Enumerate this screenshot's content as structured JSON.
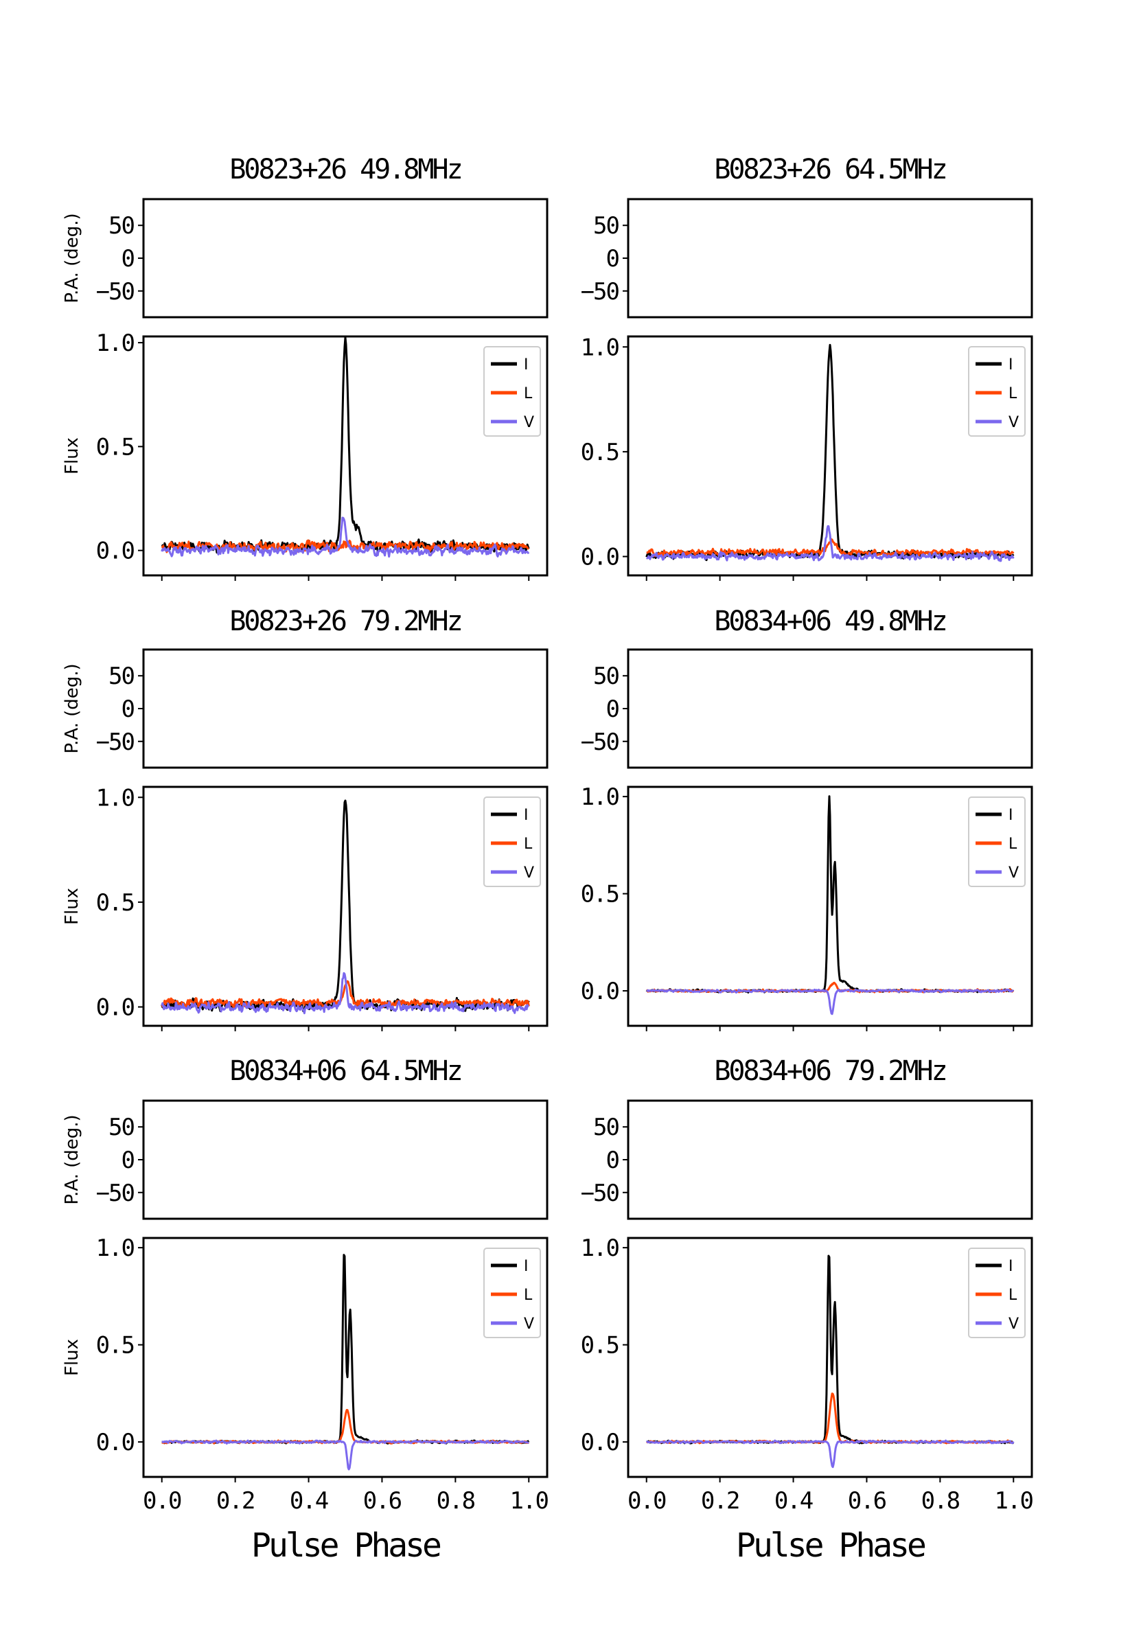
{
  "chart_data": [
    {
      "type": "line",
      "title": "B0823+26 49.8MHz",
      "pa_ylabel": "P.A. (deg.)",
      "pa_yticks": [
        "50",
        "0",
        "−50"
      ],
      "flux_ylabel": "Flux",
      "flux_yticks": [
        "0.0",
        "0.5",
        "1.0"
      ],
      "flux_ylim": [
        -0.12,
        1.03
      ],
      "xlim": [
        -0.05,
        1.05
      ],
      "noise": {
        "I": 0.018,
        "L": 0.016,
        "V": 0.016
      },
      "series": [
        {
          "name": "I",
          "color": "#000000",
          "baseline": 0.02,
          "components": [
            {
              "center": 0.5,
              "amp": 1.0,
              "width": 0.008
            },
            {
              "center": 0.53,
              "amp": 0.1,
              "width": 0.012
            }
          ]
        },
        {
          "name": "L",
          "color": "#ff4500",
          "baseline": 0.02,
          "components": [
            {
              "center": 0.5,
              "amp": 0.02,
              "width": 0.01
            }
          ]
        },
        {
          "name": "V",
          "color": "#7b68ee",
          "baseline": 0.0,
          "components": [
            {
              "center": 0.495,
              "amp": 0.15,
              "width": 0.006
            },
            {
              "center": 0.515,
              "amp": 0.02,
              "width": 0.01
            }
          ]
        }
      ],
      "xlabel": "",
      "xticks": []
    },
    {
      "type": "line",
      "title": "B0823+26 64.5MHz",
      "pa_ylabel": "",
      "pa_yticks": [
        "50",
        "0",
        "−50"
      ],
      "flux_ylabel": "",
      "flux_yticks": [
        "0.0",
        "0.5",
        "1.0"
      ],
      "flux_ylim": [
        -0.09,
        1.05
      ],
      "xlim": [
        -0.05,
        1.05
      ],
      "noise": {
        "I": 0.012,
        "L": 0.01,
        "V": 0.012
      },
      "series": [
        {
          "name": "I",
          "color": "#000000",
          "baseline": 0.01,
          "components": [
            {
              "center": 0.5,
              "amp": 0.99,
              "width": 0.01
            }
          ]
        },
        {
          "name": "L",
          "color": "#ff4500",
          "baseline": 0.02,
          "components": [
            {
              "center": 0.505,
              "amp": 0.06,
              "width": 0.01
            }
          ]
        },
        {
          "name": "V",
          "color": "#7b68ee",
          "baseline": 0.0,
          "components": [
            {
              "center": 0.495,
              "amp": 0.15,
              "width": 0.006
            }
          ]
        }
      ],
      "xlabel": "",
      "xticks": []
    },
    {
      "type": "line",
      "title": "B0823+26 79.2MHz",
      "pa_ylabel": "P.A. (deg.)",
      "pa_yticks": [
        "50",
        "0",
        "−50"
      ],
      "flux_ylabel": "Flux",
      "flux_yticks": [
        "0.0",
        "0.5",
        "1.0"
      ],
      "flux_ylim": [
        -0.09,
        1.05
      ],
      "xlim": [
        -0.05,
        1.05
      ],
      "noise": {
        "I": 0.016,
        "L": 0.014,
        "V": 0.015
      },
      "series": [
        {
          "name": "I",
          "color": "#000000",
          "baseline": 0.01,
          "components": [
            {
              "center": 0.5,
              "amp": 0.99,
              "width": 0.009
            }
          ]
        },
        {
          "name": "L",
          "color": "#ff4500",
          "baseline": 0.02,
          "components": [
            {
              "center": 0.505,
              "amp": 0.1,
              "width": 0.008
            }
          ]
        },
        {
          "name": "V",
          "color": "#7b68ee",
          "baseline": 0.0,
          "components": [
            {
              "center": 0.497,
              "amp": 0.17,
              "width": 0.006
            }
          ]
        }
      ],
      "xlabel": "",
      "xticks": []
    },
    {
      "type": "line",
      "title": "B0834+06 49.8MHz",
      "pa_ylabel": "",
      "pa_yticks": [
        "50",
        "0",
        "−50"
      ],
      "flux_ylabel": "",
      "flux_yticks": [
        "0.0",
        "0.5",
        "1.0"
      ],
      "flux_ylim": [
        -0.18,
        1.05
      ],
      "xlim": [
        -0.05,
        1.05
      ],
      "noise": {
        "I": 0.004,
        "L": 0.004,
        "V": 0.004
      },
      "series": [
        {
          "name": "I",
          "color": "#000000",
          "baseline": 0.0,
          "components": [
            {
              "center": 0.498,
              "amp": 0.98,
              "width": 0.004
            },
            {
              "center": 0.513,
              "amp": 0.63,
              "width": 0.005
            },
            {
              "center": 0.53,
              "amp": 0.05,
              "width": 0.02
            }
          ]
        },
        {
          "name": "L",
          "color": "#ff4500",
          "baseline": 0.0,
          "components": [
            {
              "center": 0.51,
              "amp": 0.04,
              "width": 0.008
            }
          ]
        },
        {
          "name": "V",
          "color": "#7b68ee",
          "baseline": 0.0,
          "components": [
            {
              "center": 0.505,
              "amp": -0.12,
              "width": 0.005
            }
          ]
        }
      ],
      "xlabel": "",
      "xticks": []
    },
    {
      "type": "line",
      "title": "B0834+06 64.5MHz",
      "pa_ylabel": "P.A. (deg.)",
      "pa_yticks": [
        "50",
        "0",
        "−50"
      ],
      "flux_ylabel": "Flux",
      "flux_yticks": [
        "0.0",
        "0.5",
        "1.0"
      ],
      "flux_ylim": [
        -0.18,
        1.05
      ],
      "xlim": [
        -0.05,
        1.05
      ],
      "noise": {
        "I": 0.004,
        "L": 0.004,
        "V": 0.004
      },
      "series": [
        {
          "name": "I",
          "color": "#000000",
          "baseline": 0.0,
          "components": [
            {
              "center": 0.497,
              "amp": 0.97,
              "width": 0.004
            },
            {
              "center": 0.513,
              "amp": 0.66,
              "width": 0.005
            },
            {
              "center": 0.53,
              "amp": 0.03,
              "width": 0.02
            }
          ]
        },
        {
          "name": "L",
          "color": "#ff4500",
          "baseline": 0.0,
          "components": [
            {
              "center": 0.505,
              "amp": 0.16,
              "width": 0.008
            }
          ]
        },
        {
          "name": "V",
          "color": "#7b68ee",
          "baseline": 0.0,
          "components": [
            {
              "center": 0.51,
              "amp": -0.14,
              "width": 0.005
            }
          ]
        }
      ],
      "xlabel": "Pulse Phase",
      "xticks": [
        "0.0",
        "0.2",
        "0.4",
        "0.6",
        "0.8",
        "1.0"
      ]
    },
    {
      "type": "line",
      "title": "B0834+06 79.2MHz",
      "pa_ylabel": "",
      "pa_yticks": [
        "50",
        "0",
        "−50"
      ],
      "flux_ylabel": "",
      "flux_yticks": [
        "0.0",
        "0.5",
        "1.0"
      ],
      "flux_ylim": [
        -0.18,
        1.05
      ],
      "xlim": [
        -0.05,
        1.05
      ],
      "noise": {
        "I": 0.004,
        "L": 0.004,
        "V": 0.004
      },
      "series": [
        {
          "name": "I",
          "color": "#000000",
          "baseline": 0.0,
          "components": [
            {
              "center": 0.497,
              "amp": 0.97,
              "width": 0.004
            },
            {
              "center": 0.513,
              "amp": 0.7,
              "width": 0.005
            },
            {
              "center": 0.53,
              "amp": 0.03,
              "width": 0.02
            }
          ]
        },
        {
          "name": "L",
          "color": "#ff4500",
          "baseline": 0.0,
          "components": [
            {
              "center": 0.507,
              "amp": 0.25,
              "width": 0.008
            }
          ]
        },
        {
          "name": "V",
          "color": "#7b68ee",
          "baseline": 0.0,
          "components": [
            {
              "center": 0.507,
              "amp": -0.13,
              "width": 0.005
            }
          ]
        }
      ],
      "xlabel": "Pulse Phase",
      "xticks": [
        "0.0",
        "0.2",
        "0.4",
        "0.6",
        "0.8",
        "1.0"
      ]
    }
  ]
}
